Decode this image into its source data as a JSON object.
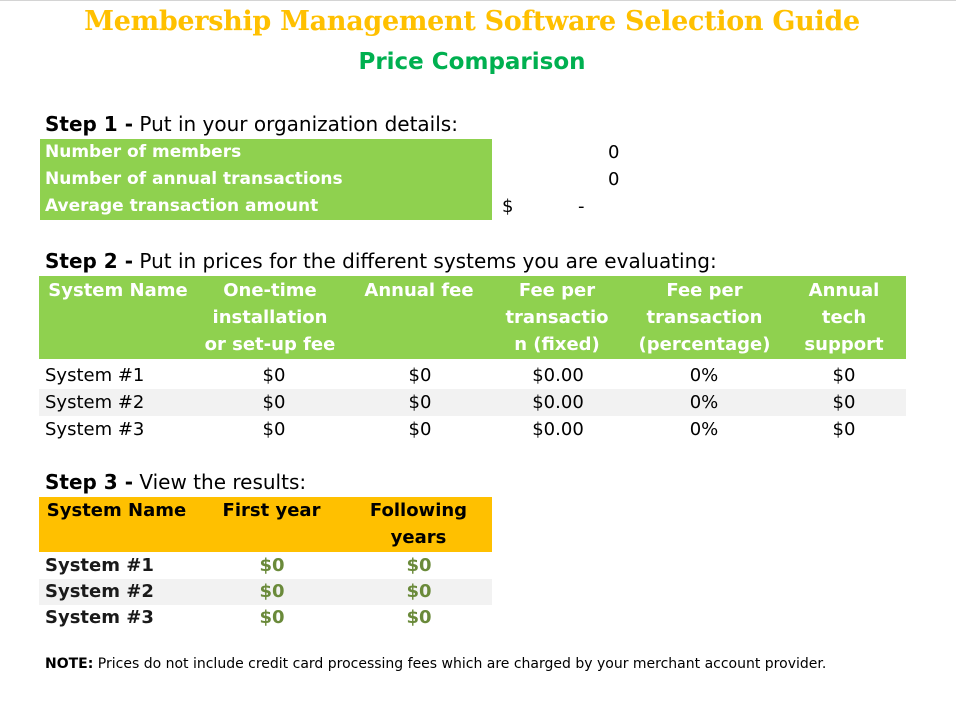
{
  "title": "Membership Management Software Selection Guide",
  "subtitle": "Price Comparison",
  "colors": {
    "title": "#ffc000",
    "subtitle": "#00b050",
    "green_header": "#8fd14f",
    "orange_header": "#ffc000",
    "result_value": "#6a8a3a"
  },
  "step1": {
    "label": "Step 1 -",
    "text": " Put in your organization details:",
    "rows": [
      {
        "label": "Number of members",
        "value": "0"
      },
      {
        "label": "Number of annual transactions",
        "value": "0"
      },
      {
        "label": "Average transaction amount",
        "currency": "$",
        "value": "-"
      }
    ]
  },
  "step2": {
    "label": "Step 2 -",
    "text": " Put in prices for the different systems you are evaluating:",
    "headers": [
      "System Name",
      "One-time\ninstallation\nor set-up fee",
      "Annual fee",
      "Fee per\ntransactio\nn (fixed)",
      "Fee per\ntransaction\n(percentage)",
      "Annual\ntech\nsupport"
    ],
    "rows": [
      [
        "System #1",
        "$0",
        "$0",
        "$0.00",
        "0%",
        "$0"
      ],
      [
        "System #2",
        "$0",
        "$0",
        "$0.00",
        "0%",
        "$0"
      ],
      [
        "System #3",
        "$0",
        "$0",
        "$0.00",
        "0%",
        "$0"
      ]
    ]
  },
  "step3": {
    "label": "Step 3 -",
    "text": " View the results:",
    "headers": [
      "System Name",
      "First year",
      "Following\nyears"
    ],
    "rows": [
      [
        "System #1",
        "$0",
        "$0"
      ],
      [
        "System #2",
        "$0",
        "$0"
      ],
      [
        "System #3",
        "$0",
        "$0"
      ]
    ]
  },
  "note": {
    "label": "NOTE:",
    "text": " Prices do not include credit card processing fees which are charged by your merchant account provider."
  }
}
